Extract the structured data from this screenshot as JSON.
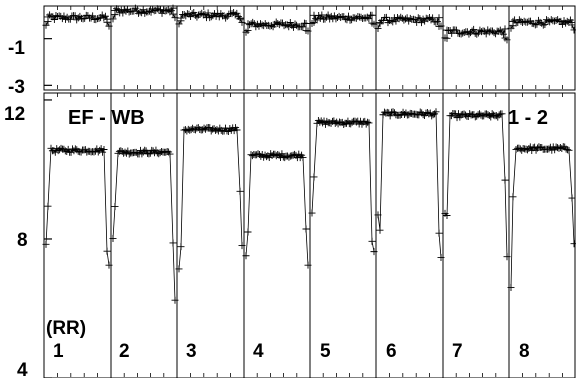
{
  "chart_data": [
    {
      "type": "scatter",
      "title": "",
      "ylim": [
        -3.2,
        0.4
      ],
      "yticks": [
        -1,
        -3
      ],
      "ytick_labels": [
        "-1",
        "-3"
      ],
      "segments": [
        {
          "label": "1",
          "level": -0.1
        },
        {
          "label": "2",
          "level": 0.2
        },
        {
          "label": "3",
          "level": 0.0
        },
        {
          "label": "4",
          "level": -0.4
        },
        {
          "label": "5",
          "level": -0.1
        },
        {
          "label": "6",
          "level": -0.2
        },
        {
          "label": "7",
          "level": -0.7
        },
        {
          "label": "8",
          "level": -0.3
        }
      ]
    },
    {
      "type": "scatter",
      "title": "",
      "ylim": [
        4,
        12.2
      ],
      "yticks": [
        12,
        8,
        4
      ],
      "ytick_labels": [
        "12",
        "8",
        "4"
      ],
      "annotations": [
        "EF - WB",
        "1 - 2",
        "(RR)"
      ],
      "segments": [
        {
          "label": "1",
          "level": 10.55
        },
        {
          "label": "2",
          "level": 10.5
        },
        {
          "label": "3",
          "level": 11.15
        },
        {
          "label": "4",
          "level": 10.4
        },
        {
          "label": "5",
          "level": 11.35
        },
        {
          "label": "6",
          "level": 11.6
        },
        {
          "label": "7",
          "level": 11.55
        },
        {
          "label": "8",
          "level": 10.6
        }
      ]
    }
  ]
}
